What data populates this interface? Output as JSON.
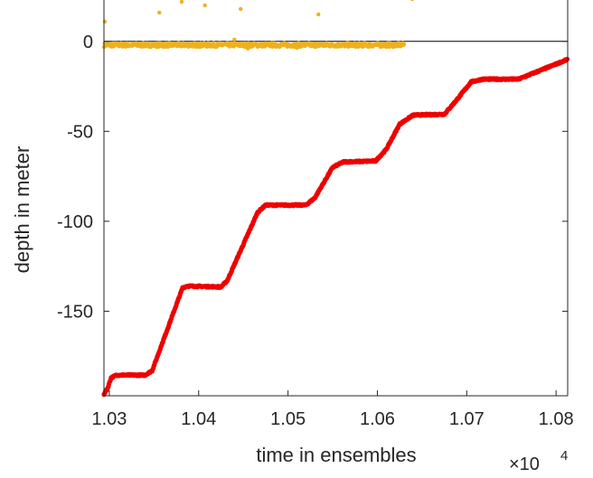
{
  "chart_data": {
    "type": "scatter",
    "title": "",
    "xlabel": "time in ensembles",
    "ylabel": "depth in meter",
    "x_multiplier_label": "×10",
    "x_multiplier_exponent": "4",
    "xlim": [
      10294,
      10813
    ],
    "ylim": [
      -197,
      23
    ],
    "xticks": [
      10300,
      10400,
      10500,
      10600,
      10700,
      10800
    ],
    "xtick_labels": [
      "1.03",
      "1.04",
      "1.05",
      "1.06",
      "1.07",
      "1.08"
    ],
    "yticks": [
      0,
      -50,
      -100,
      -150
    ],
    "ytick_labels": [
      "0",
      "-50",
      "-100",
      "-150"
    ],
    "reference_line_y": 0,
    "grid": false,
    "series": [
      {
        "color": "#EE0000",
        "marker": "dot",
        "profile": [
          [
            10294,
            -196
          ],
          [
            10298,
            -193
          ],
          [
            10302,
            -187
          ],
          [
            10308,
            -185.5
          ],
          [
            10340,
            -185.5
          ],
          [
            10348,
            -183
          ],
          [
            10382,
            -137
          ],
          [
            10387,
            -136
          ],
          [
            10425,
            -136.5
          ],
          [
            10432,
            -133
          ],
          [
            10466,
            -95
          ],
          [
            10475,
            -91
          ],
          [
            10520,
            -91
          ],
          [
            10530,
            -87
          ],
          [
            10550,
            -70
          ],
          [
            10562,
            -67
          ],
          [
            10598,
            -66.5
          ],
          [
            10610,
            -60
          ],
          [
            10625,
            -46
          ],
          [
            10640,
            -41
          ],
          [
            10675,
            -40.5
          ],
          [
            10688,
            -33
          ],
          [
            10705,
            -22.5
          ],
          [
            10718,
            -21
          ],
          [
            10758,
            -21
          ],
          [
            10778,
            -17
          ],
          [
            10798,
            -13
          ],
          [
            10813,
            -10
          ]
        ]
      },
      {
        "color": "#EDB120",
        "marker": "dot",
        "baseline": {
          "x_start": 10294,
          "x_end": 10630,
          "y": -2,
          "spread": 1.2
        },
        "outliers": [
          [
            10295,
            11
          ],
          [
            10356,
            16
          ],
          [
            10381,
            22
          ],
          [
            10407,
            20
          ],
          [
            10447,
            18
          ],
          [
            10467,
            24
          ],
          [
            10534,
            15
          ],
          [
            10639,
            23.5
          ],
          [
            10440,
            1
          ],
          [
            10455,
            -4
          ],
          [
            10580,
            -1.5
          ],
          [
            10510,
            -3.5
          ]
        ]
      }
    ]
  }
}
